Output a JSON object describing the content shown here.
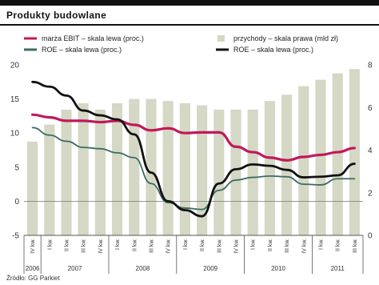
{
  "header": {
    "title": "Produkty budowlane",
    "source": "Źródło: GG Parkiet"
  },
  "chart_data": {
    "type": "bar+line",
    "title": "Produkty budowlane",
    "categories": [
      "IV kw.",
      "I kw.",
      "II kw.",
      "III kw.",
      "IV kw.",
      "I kw.",
      "II kw.",
      "III kw.",
      "IV kw.",
      "I kw.",
      "II kw.",
      "III kw.",
      "IV kw.",
      "I kw.",
      "II kw.",
      "III kw.",
      "IV kw.",
      "I kw.",
      "II kw.",
      "III kw."
    ],
    "years": [
      {
        "label": "2006",
        "start": 0,
        "end": 0
      },
      {
        "label": "2007",
        "start": 1,
        "end": 4
      },
      {
        "label": "2008",
        "start": 5,
        "end": 8
      },
      {
        "label": "2009",
        "start": 9,
        "end": 12
      },
      {
        "label": "2010",
        "start": 13,
        "end": 16
      },
      {
        "label": "2011",
        "start": 17,
        "end": 19
      }
    ],
    "left_axis": {
      "min": -5,
      "max": 20,
      "ticks": [
        -5,
        0,
        5,
        10,
        15,
        20
      ]
    },
    "right_axis": {
      "min": 0,
      "max": 8,
      "ticks": [
        0,
        2,
        4,
        6,
        8
      ]
    },
    "bars": {
      "name": "przychody – skala prawa (mld zł)",
      "axis": "right",
      "color": "#d4d8c4",
      "values": [
        4.4,
        5.2,
        5.9,
        6.2,
        5.9,
        6.2,
        6.4,
        6.4,
        6.3,
        6.2,
        6.1,
        5.9,
        5.9,
        5.9,
        6.3,
        6.6,
        7.0,
        7.3,
        7.6,
        7.8
      ]
    },
    "series": [
      {
        "name": "marża EBIT – skala lewa (proc.)",
        "axis": "left",
        "color": "#c2185b",
        "width": 3.2,
        "values": [
          12.7,
          12.3,
          11.8,
          11.8,
          11.6,
          11.8,
          11.2,
          10.4,
          10.7,
          10.0,
          10.1,
          10.1,
          8.0,
          7.2,
          6.4,
          6.0,
          6.5,
          6.8,
          7.2,
          7.8
        ]
      },
      {
        "name": "ROE – skala lewa (proc.)",
        "axis": "left",
        "color": "#3d6b66",
        "width": 1.8,
        "values": [
          10.8,
          9.7,
          8.8,
          7.9,
          7.7,
          7.1,
          6.4,
          2.6,
          -0.2,
          -1.0,
          -1.2,
          1.6,
          3.1,
          3.5,
          3.7,
          3.6,
          2.5,
          2.4,
          3.3,
          3.3
        ]
      },
      {
        "name": "ROE – skala lewa (proc.)",
        "axis": "left",
        "color": "#111111",
        "width": 2.8,
        "values": [
          17.5,
          16.8,
          15.5,
          13.3,
          12.6,
          12.0,
          9.8,
          4.2,
          0.0,
          -1.3,
          -2.2,
          2.6,
          4.7,
          5.4,
          5.2,
          4.6,
          3.5,
          3.6,
          3.8,
          5.5
        ]
      }
    ],
    "legend": [
      {
        "label": "marża EBIT – skala lewa (proc.)",
        "color": "#c2185b",
        "kind": "line"
      },
      {
        "label": "przychody – skala prawa (mld zł)",
        "color": "#d4d8c4",
        "kind": "box"
      },
      {
        "label": "ROE – skala lewa (proc.)",
        "color": "#3d6b66",
        "kind": "line"
      },
      {
        "label": "ROE – skala lewa (proc.)",
        "color": "#111111",
        "kind": "line"
      }
    ],
    "grid": false,
    "legend_position": "top"
  }
}
